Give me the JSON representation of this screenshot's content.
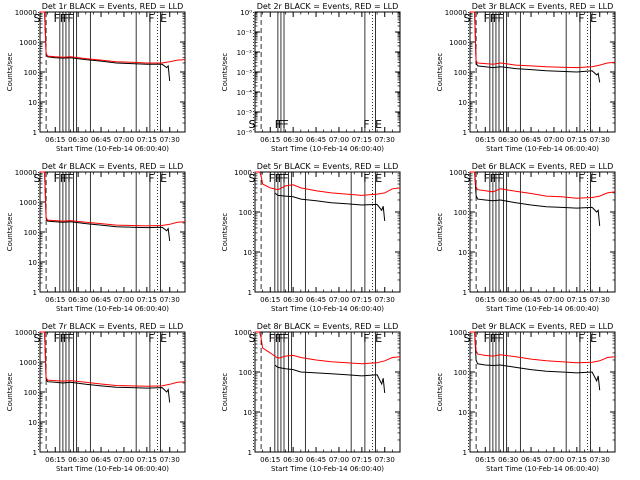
{
  "figure": {
    "x_ticks": [
      "06:15",
      "06:30",
      "06:45",
      "07:00",
      "07:15",
      "07:30"
    ],
    "x_label": "Start Time (10-Feb-14 06:00:40)",
    "y_label": "Counts/sec",
    "y_label_alt": "Counts/sec",
    "colors": {
      "events": "#000000",
      "lld": "#ff0000",
      "frame": "#000000"
    }
  },
  "chart_data": [
    {
      "type": "line",
      "panel": "1r",
      "title": "Det 1r BLACK = Events, RED = LLD",
      "ylim": [
        1,
        10000
      ],
      "y_ticks": [
        "1",
        "10",
        "100",
        "1000",
        "10000"
      ],
      "x_range_min": [
        5,
        100
      ],
      "letters": [
        "S",
        "F",
        "F",
        "F",
        "F",
        "F",
        "E"
      ],
      "series": [
        {
          "name": "Events",
          "x": [
            5,
            8,
            9,
            10,
            15,
            20,
            25,
            35,
            45,
            55,
            65,
            75,
            85,
            88,
            89,
            90
          ],
          "y": [
            10000,
            10000,
            400,
            320,
            300,
            290,
            300,
            260,
            230,
            200,
            190,
            180,
            180,
            140,
            160,
            50
          ]
        },
        {
          "name": "LLD",
          "x": [
            5,
            8,
            9,
            10,
            15,
            20,
            25,
            35,
            45,
            55,
            65,
            75,
            85,
            90,
            95,
            100
          ],
          "y": [
            10000,
            10000,
            420,
            340,
            320,
            310,
            320,
            280,
            250,
            220,
            210,
            200,
            200,
            220,
            250,
            260
          ]
        }
      ]
    },
    {
      "type": "line",
      "panel": "2r",
      "title": "Det 2r BLACK = Events, RED = LLD",
      "ylim": [
        1e-06,
        1
      ],
      "y_ticks": [
        "10⁻⁶",
        "10⁻⁵",
        "10⁻⁴",
        "10⁻³",
        "10⁻²",
        "10⁻¹",
        "10⁰"
      ],
      "x_range_min": [
        5,
        100
      ],
      "letters": [
        "S",
        "F",
        "F",
        "F",
        "F",
        "E"
      ],
      "series": []
    },
    {
      "type": "line",
      "panel": "3r",
      "title": "Det 3r BLACK = Events, RED = LLD",
      "ylim": [
        1,
        10000
      ],
      "y_ticks": [
        "1",
        "10",
        "100",
        "1000",
        "10000"
      ],
      "x_range_min": [
        5,
        100
      ],
      "letters": [
        "S",
        "F",
        "F",
        "F",
        "F",
        "F",
        "E"
      ],
      "series": [
        {
          "name": "Events",
          "x": [
            5,
            8,
            9,
            10,
            15,
            20,
            25,
            35,
            45,
            55,
            65,
            75,
            85,
            88,
            89,
            90
          ],
          "y": [
            10000,
            10000,
            200,
            160,
            150,
            140,
            150,
            130,
            120,
            110,
            105,
            100,
            110,
            80,
            90,
            45
          ]
        },
        {
          "name": "LLD",
          "x": [
            5,
            8,
            9,
            10,
            15,
            20,
            25,
            35,
            45,
            55,
            65,
            75,
            85,
            90,
            95,
            100
          ],
          "y": [
            10000,
            10000,
            240,
            200,
            190,
            180,
            200,
            170,
            160,
            150,
            145,
            140,
            150,
            170,
            200,
            210
          ]
        }
      ]
    },
    {
      "type": "line",
      "panel": "4r",
      "title": "Det 4r BLACK = Events, RED = LLD",
      "ylim": [
        1,
        10000
      ],
      "y_ticks": [
        "1",
        "10",
        "100",
        "1000",
        "10000"
      ],
      "x_range_min": [
        5,
        100
      ],
      "letters": [
        "S",
        "F",
        "F",
        "F",
        "F",
        "F",
        "E"
      ],
      "series": [
        {
          "name": "Events",
          "x": [
            5,
            8,
            9,
            10,
            15,
            20,
            25,
            35,
            45,
            55,
            65,
            75,
            85,
            88,
            89,
            90
          ],
          "y": [
            10000,
            10000,
            280,
            230,
            220,
            210,
            220,
            190,
            170,
            150,
            145,
            140,
            145,
            110,
            130,
            50
          ]
        },
        {
          "name": "LLD",
          "x": [
            5,
            8,
            9,
            10,
            15,
            20,
            25,
            35,
            45,
            55,
            65,
            75,
            85,
            90,
            95,
            100
          ],
          "y": [
            10000,
            10000,
            300,
            250,
            240,
            230,
            240,
            210,
            190,
            170,
            165,
            160,
            165,
            180,
            210,
            220
          ]
        }
      ]
    },
    {
      "type": "line",
      "panel": "5r",
      "title": "Det 5r BLACK = Events, RED = LLD",
      "ylim": [
        1,
        1000
      ],
      "y_ticks": [
        "1",
        "10",
        "100",
        "1000"
      ],
      "x_range_min": [
        5,
        100
      ],
      "letters": [
        "S",
        "F",
        "F",
        "F",
        "F",
        "F",
        "E"
      ],
      "series": [
        {
          "name": "Events",
          "x": [
            18,
            20,
            25,
            30,
            35,
            45,
            55,
            65,
            75,
            85,
            88,
            89,
            90
          ],
          "y": [
            300,
            260,
            250,
            240,
            210,
            190,
            170,
            160,
            150,
            155,
            110,
            140,
            60
          ]
        },
        {
          "name": "LLD",
          "x": [
            5,
            8,
            9,
            10,
            15,
            20,
            25,
            30,
            35,
            45,
            55,
            65,
            75,
            85,
            90,
            95,
            100
          ],
          "y": [
            1000,
            1000,
            800,
            500,
            400,
            360,
            450,
            480,
            400,
            340,
            300,
            280,
            260,
            280,
            300,
            380,
            400
          ]
        }
      ]
    },
    {
      "type": "line",
      "panel": "6r",
      "title": "Det 6r BLACK = Events, RED = LLD",
      "ylim": [
        1,
        1000
      ],
      "y_ticks": [
        "1",
        "10",
        "100",
        "1000"
      ],
      "x_range_min": [
        5,
        100
      ],
      "letters": [
        "S",
        "F",
        "F",
        "F",
        "F",
        "F",
        "E"
      ],
      "series": [
        {
          "name": "Events",
          "x": [
            5,
            8,
            9,
            10,
            15,
            20,
            25,
            35,
            45,
            55,
            65,
            75,
            85,
            88,
            89,
            90
          ],
          "y": [
            1000,
            1000,
            260,
            210,
            200,
            190,
            200,
            170,
            150,
            135,
            130,
            125,
            130,
            100,
            110,
            45
          ]
        },
        {
          "name": "LLD",
          "x": [
            5,
            8,
            9,
            10,
            15,
            20,
            25,
            35,
            45,
            55,
            65,
            75,
            85,
            90,
            95,
            100
          ],
          "y": [
            1000,
            1000,
            420,
            360,
            340,
            320,
            380,
            330,
            290,
            250,
            240,
            220,
            230,
            250,
            300,
            320
          ]
        }
      ]
    },
    {
      "type": "line",
      "panel": "7r",
      "title": "Det 7r BLACK = Events, RED = LLD",
      "ylim": [
        1,
        10000
      ],
      "y_ticks": [
        "1",
        "10",
        "100",
        "1000",
        "10000"
      ],
      "x_range_min": [
        5,
        100
      ],
      "letters": [
        "S",
        "F",
        "F",
        "F",
        "F",
        "F",
        "E"
      ],
      "series": [
        {
          "name": "Events",
          "x": [
            5,
            8,
            9,
            10,
            15,
            20,
            25,
            35,
            45,
            55,
            65,
            75,
            85,
            88,
            89,
            90
          ],
          "y": [
            10000,
            10000,
            270,
            220,
            210,
            200,
            210,
            180,
            160,
            145,
            140,
            135,
            140,
            100,
            120,
            45
          ]
        },
        {
          "name": "LLD",
          "x": [
            5,
            8,
            9,
            10,
            15,
            20,
            25,
            35,
            45,
            55,
            65,
            75,
            85,
            90,
            95,
            100
          ],
          "y": [
            10000,
            10000,
            300,
            250,
            240,
            230,
            240,
            210,
            185,
            165,
            160,
            155,
            160,
            180,
            210,
            220
          ]
        }
      ]
    },
    {
      "type": "line",
      "panel": "8r",
      "title": "Det 8r BLACK = Events, RED = LLD",
      "ylim": [
        1,
        1000
      ],
      "y_ticks": [
        "1",
        "10",
        "100",
        "1000"
      ],
      "x_range_min": [
        5,
        100
      ],
      "letters": [
        "S",
        "F",
        "F",
        "F",
        "F",
        "F",
        "E"
      ],
      "series": [
        {
          "name": "Events",
          "x": [
            18,
            20,
            25,
            30,
            35,
            45,
            55,
            65,
            75,
            85,
            88,
            89,
            90
          ],
          "y": [
            150,
            130,
            120,
            115,
            100,
            95,
            90,
            85,
            80,
            85,
            50,
            70,
            30
          ]
        },
        {
          "name": "LLD",
          "x": [
            5,
            8,
            9,
            10,
            15,
            20,
            25,
            30,
            35,
            45,
            55,
            65,
            75,
            85,
            90,
            95,
            100
          ],
          "y": [
            1000,
            1000,
            700,
            400,
            300,
            220,
            250,
            260,
            230,
            200,
            180,
            170,
            160,
            170,
            190,
            230,
            240
          ]
        }
      ]
    },
    {
      "type": "line",
      "panel": "9r",
      "title": "Det 9r BLACK = Events, RED = LLD",
      "ylim": [
        1,
        1000
      ],
      "y_ticks": [
        "1",
        "10",
        "100",
        "1000"
      ],
      "x_range_min": [
        5,
        100
      ],
      "letters": [
        "S",
        "F",
        "F",
        "F",
        "F",
        "F",
        "E"
      ],
      "series": [
        {
          "name": "Events",
          "x": [
            5,
            8,
            9,
            10,
            15,
            20,
            25,
            35,
            45,
            55,
            65,
            75,
            85,
            88,
            89,
            90
          ],
          "y": [
            1000,
            1000,
            200,
            160,
            150,
            145,
            150,
            130,
            115,
            105,
            100,
            95,
            100,
            60,
            80,
            35
          ]
        },
        {
          "name": "LLD",
          "x": [
            5,
            8,
            9,
            10,
            15,
            20,
            25,
            35,
            45,
            55,
            65,
            75,
            85,
            90,
            95,
            100
          ],
          "y": [
            1000,
            1000,
            340,
            280,
            260,
            250,
            270,
            240,
            210,
            190,
            180,
            170,
            175,
            190,
            230,
            240
          ]
        }
      ]
    }
  ]
}
